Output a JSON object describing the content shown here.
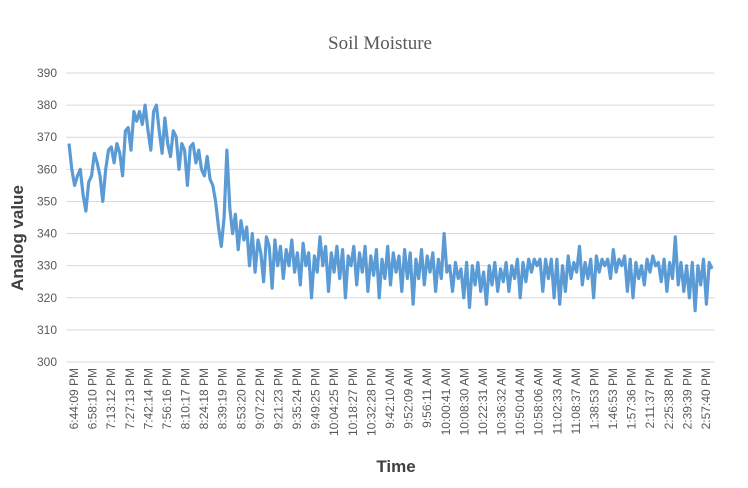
{
  "chart_data": {
    "type": "line",
    "title": "Soil Moisture",
    "xlabel": "Time",
    "ylabel": "Analog value",
    "ylim": [
      300,
      390
    ],
    "yticks": [
      300,
      310,
      320,
      330,
      340,
      350,
      360,
      370,
      380,
      390
    ],
    "grid": true,
    "legend": "none",
    "xtick_labels": [
      "6:44:09 PM",
      "6:58:10 PM",
      "7:13:12 PM",
      "7:27:13 PM",
      "7:42:14 PM",
      "7:56:16 PM",
      "8:10:17 PM",
      "8:24:18 PM",
      "8:39:19 PM",
      "8:53:20 PM",
      "9:07:22 PM",
      "9:21:23 PM",
      "9:35:24 PM",
      "9:49:25 PM",
      "10:04:25 PM",
      "10:18:27 PM",
      "10:32:28 PM",
      "9:42:10 AM",
      "9:52:09 AM",
      "9:56:11 AM",
      "10:00:41 AM",
      "10:08:30 AM",
      "10:22:31 AM",
      "10:36:32 AM",
      "10:50:04 AM",
      "10:58:06 AM",
      "11:02:33 AM",
      "11:08:37 AM",
      "1:38:53 PM",
      "1:46:53 PM",
      "1:57:36 PM",
      "2:11:37 PM",
      "2:25:38 PM",
      "2:39:39 PM",
      "2:57:40 PM"
    ],
    "series": [
      {
        "name": "Soil Moisture",
        "color": "#5B9BD5",
        "values": [
          368,
          360,
          355,
          358,
          360,
          352,
          347,
          356,
          358,
          365,
          362,
          358,
          350,
          360,
          366,
          367,
          362,
          368,
          365,
          358,
          372,
          373,
          366,
          378,
          375,
          378,
          374,
          380,
          372,
          366,
          378,
          380,
          372,
          365,
          376,
          368,
          364,
          372,
          370,
          360,
          368,
          366,
          355,
          367,
          368,
          362,
          366,
          360,
          358,
          364,
          357,
          355,
          350,
          342,
          336,
          345,
          366,
          348,
          340,
          346,
          335,
          344,
          338,
          342,
          330,
          340,
          328,
          338,
          334,
          325,
          339,
          336,
          323,
          338,
          330,
          336,
          326,
          335,
          330,
          338,
          328,
          334,
          324,
          337,
          330,
          334,
          320,
          333,
          328,
          339,
          330,
          336,
          322,
          334,
          328,
          336,
          326,
          335,
          320,
          333,
          330,
          336,
          324,
          334,
          328,
          336,
          322,
          333,
          327,
          335,
          320,
          332,
          326,
          336,
          324,
          334,
          328,
          333,
          322,
          335,
          326,
          334,
          318,
          332,
          326,
          335,
          324,
          333,
          328,
          334,
          322,
          332,
          326,
          340,
          328,
          330,
          322,
          331,
          326,
          329,
          320,
          331,
          317,
          330,
          324,
          331,
          322,
          328,
          318,
          330,
          324,
          331,
          322,
          329,
          325,
          331,
          322,
          330,
          326,
          332,
          320,
          331,
          325,
          332,
          328,
          332,
          330,
          332,
          322,
          332,
          326,
          332,
          320,
          332,
          318,
          330,
          322,
          333,
          326,
          331,
          328,
          336,
          324,
          331,
          326,
          332,
          320,
          333,
          328,
          332,
          330,
          332,
          326,
          335,
          328,
          332,
          330,
          333,
          322,
          332,
          320,
          331,
          326,
          330,
          324,
          332,
          328,
          333,
          330,
          331,
          325,
          332,
          322,
          331,
          326,
          339,
          324,
          331,
          322,
          330,
          320,
          331,
          316,
          330,
          324,
          332,
          318,
          331,
          329
        ]
      }
    ]
  }
}
